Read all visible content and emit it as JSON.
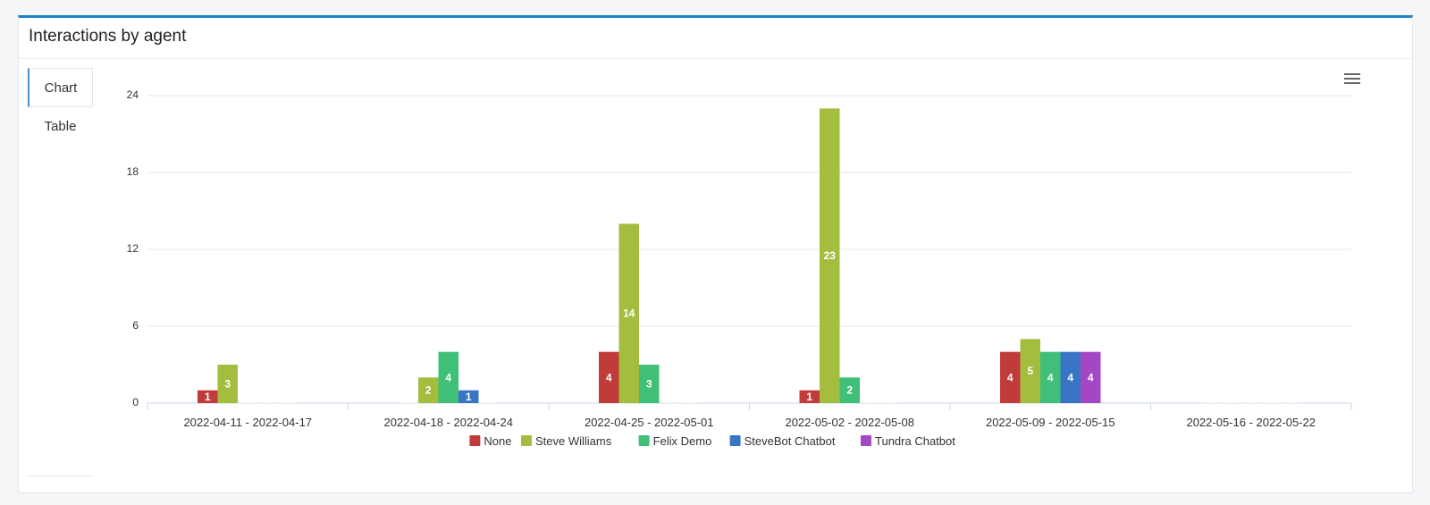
{
  "panel": {
    "title": "Interactions by agent"
  },
  "tabs": [
    {
      "label": "Chart"
    },
    {
      "label": "Table"
    }
  ],
  "chart_data": {
    "type": "bar",
    "title": "",
    "xlabel": "",
    "ylabel": "",
    "ylim": [
      0,
      24
    ],
    "yticks": [
      0,
      6,
      12,
      18,
      24
    ],
    "grid": true,
    "legend_position": "bottom-center",
    "data_labels": true,
    "categories": [
      "2022-04-11 - 2022-04-17",
      "2022-04-18 - 2022-04-24",
      "2022-04-25 - 2022-05-01",
      "2022-05-02 - 2022-05-08",
      "2022-05-09 - 2022-05-15",
      "2022-05-16 - 2022-05-22"
    ],
    "series": [
      {
        "name": "None",
        "color": "#c23b3b",
        "values": [
          1,
          0,
          4,
          1,
          4,
          0
        ]
      },
      {
        "name": "Steve Williams",
        "color": "#a3bd3e",
        "values": [
          3,
          2,
          14,
          23,
          5,
          0
        ]
      },
      {
        "name": "Felix Demo",
        "color": "#3fbf77",
        "values": [
          0,
          4,
          3,
          2,
          4,
          0
        ]
      },
      {
        "name": "SteveBot Chatbot",
        "color": "#3a74c4",
        "values": [
          0,
          1,
          0,
          0,
          4,
          0
        ]
      },
      {
        "name": "Tundra Chatbot",
        "color": "#a347c4",
        "values": [
          0,
          0,
          0,
          0,
          4,
          0
        ]
      }
    ]
  }
}
